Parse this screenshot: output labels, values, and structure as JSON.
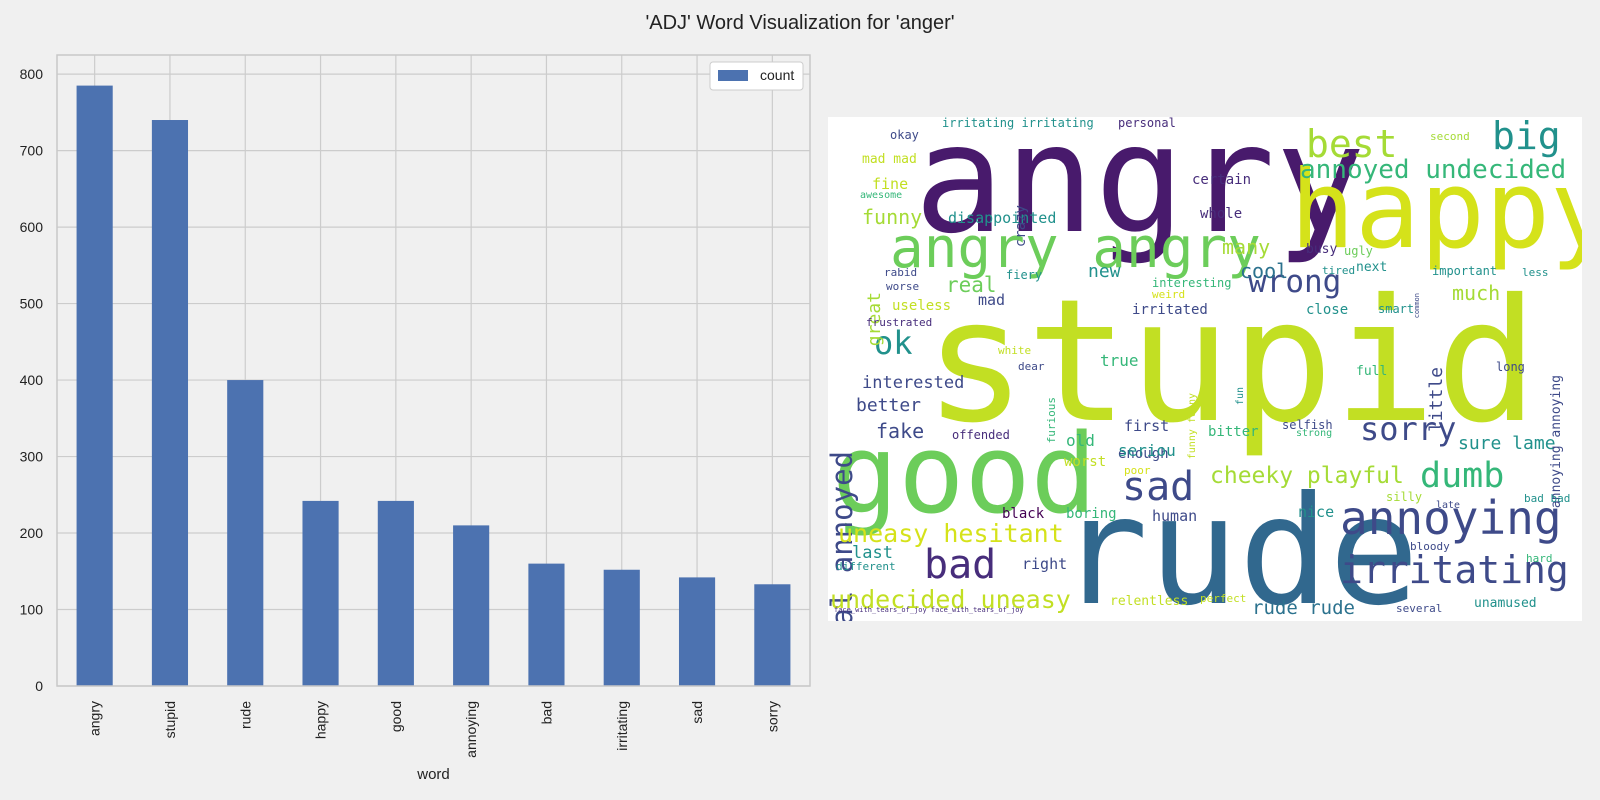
{
  "title": "'ADJ' Word Visualization for 'anger'",
  "chart_data": [
    {
      "type": "bar",
      "categories": [
        "angry",
        "stupid",
        "rude",
        "happy",
        "good",
        "annoying",
        "bad",
        "irritating",
        "sad",
        "sorry"
      ],
      "series": [
        {
          "name": "count",
          "values": [
            785,
            740,
            400,
            242,
            242,
            210,
            160,
            152,
            142,
            133
          ]
        }
      ],
      "xlabel": "word",
      "ylabel": "",
      "ylim": [
        0,
        825
      ],
      "yticks": [
        0,
        100,
        200,
        300,
        400,
        500,
        600,
        700,
        800
      ],
      "grid": true,
      "legend": "top-right",
      "bar_color": "#4c72b0",
      "grid_color": "#cccccc",
      "background": "#f0f0f0"
    },
    {
      "type": "wordcloud",
      "colormap": "viridis",
      "background": "#ffffff",
      "words": [
        {
          "text": "stupid",
          "color": "#c2df23"
        },
        {
          "text": "angry",
          "color": "#481a6c"
        },
        {
          "text": "happy",
          "color": "#d5e21a"
        },
        {
          "text": "rude",
          "color": "#31688e"
        },
        {
          "text": "good",
          "color": "#6ccd5a"
        },
        {
          "text": "angry angry",
          "color": "#6ccd5a"
        },
        {
          "text": "annoying",
          "color": "#3e4a89"
        },
        {
          "text": "irritating",
          "color": "#3e4a89"
        },
        {
          "text": "skeptical annoyed",
          "color": "#3e4a89"
        },
        {
          "text": "best",
          "color": "#a5db36"
        },
        {
          "text": "big",
          "color": "#21918c"
        },
        {
          "text": "annoyed undecided",
          "color": "#35b779"
        },
        {
          "text": "sad",
          "color": "#3e4a89"
        },
        {
          "text": "sorry",
          "color": "#3e4a89"
        },
        {
          "text": "dumb",
          "color": "#35b779"
        },
        {
          "text": "bad",
          "color": "#472d7b"
        },
        {
          "text": "ok",
          "color": "#21918c"
        },
        {
          "text": "wrong",
          "color": "#3e4a89"
        },
        {
          "text": "uneasy hesitant",
          "color": "#d5e21a"
        },
        {
          "text": "undecided uneasy",
          "color": "#c2df23"
        },
        {
          "text": "cheeky playful",
          "color": "#a5db36"
        },
        {
          "text": "rude rude",
          "color": "#2c728e"
        },
        {
          "text": "great",
          "color": "#a5db36"
        },
        {
          "text": "funny",
          "color": "#a5db36"
        },
        {
          "text": "real",
          "color": "#6ccd5a"
        },
        {
          "text": "many",
          "color": "#a5db36"
        },
        {
          "text": "cool",
          "color": "#2c728e"
        },
        {
          "text": "new",
          "color": "#21918c"
        },
        {
          "text": "much",
          "color": "#a5db36"
        },
        {
          "text": "little",
          "color": "#3e4a89"
        },
        {
          "text": "interested",
          "color": "#3e4a89"
        },
        {
          "text": "better",
          "color": "#3e4a89"
        },
        {
          "text": "fake",
          "color": "#3e4a89"
        },
        {
          "text": "sure lame",
          "color": "#21918c"
        },
        {
          "text": "last",
          "color": "#21918c"
        },
        {
          "text": "disappointed",
          "color": "#21918c"
        },
        {
          "text": "fine",
          "color": "#c2df23"
        },
        {
          "text": "mad mad",
          "color": "#c2df23"
        },
        {
          "text": "okay",
          "color": "#3e4a89"
        },
        {
          "text": "irritating irritating",
          "color": "#21918c"
        },
        {
          "text": "personal",
          "color": "#472d7b"
        },
        {
          "text": "certain",
          "color": "#472d7b"
        },
        {
          "text": "whole",
          "color": "#472d7b"
        },
        {
          "text": "crazy",
          "color": "#3e4a89"
        },
        {
          "text": "awesome",
          "color": "#35b779"
        },
        {
          "text": "second",
          "color": "#a5db36"
        },
        {
          "text": "busy",
          "color": "#472d7b"
        },
        {
          "text": "ugly",
          "color": "#6ccd5a"
        },
        {
          "text": "tired",
          "color": "#21918c"
        },
        {
          "text": "next",
          "color": "#21918c"
        },
        {
          "text": "important",
          "color": "#21918c"
        },
        {
          "text": "less",
          "color": "#21918c"
        },
        {
          "text": "annoying annoying",
          "color": "#3e4a89"
        },
        {
          "text": "common",
          "color": "#3e4a89"
        },
        {
          "text": "rabid",
          "color": "#3e4a89"
        },
        {
          "text": "worse",
          "color": "#3e4a89"
        },
        {
          "text": "fiery",
          "color": "#21918c"
        },
        {
          "text": "interesting",
          "color": "#35b779"
        },
        {
          "text": "weird",
          "color": "#d5e21a"
        },
        {
          "text": "useless",
          "color": "#c2df23"
        },
        {
          "text": "mad",
          "color": "#3e4a89"
        },
        {
          "text": "irritated",
          "color": "#3e4a89"
        },
        {
          "text": "close",
          "color": "#21918c"
        },
        {
          "text": "smart",
          "color": "#21918c"
        },
        {
          "text": "frustrated",
          "color": "#472d7b"
        },
        {
          "text": "white",
          "color": "#c2df23"
        },
        {
          "text": "dear",
          "color": "#3e4a89"
        },
        {
          "text": "furious",
          "color": "#35b779"
        },
        {
          "text": "true",
          "color": "#35b779"
        },
        {
          "text": "funny funny",
          "color": "#c2df23"
        },
        {
          "text": "fun",
          "color": "#21918c"
        },
        {
          "text": "full",
          "color": "#35b779"
        },
        {
          "text": "long",
          "color": "#3e4a89"
        },
        {
          "text": "first",
          "color": "#3e4a89"
        },
        {
          "text": "selfish",
          "color": "#3e4a89"
        },
        {
          "text": "strong",
          "color": "#35b779"
        },
        {
          "text": "offended",
          "color": "#472d7b"
        },
        {
          "text": "old",
          "color": "#35b779"
        },
        {
          "text": "bitter",
          "color": "#35b779"
        },
        {
          "text": "enough",
          "color": "#3e4a89"
        },
        {
          "text": "seriou",
          "color": "#21918c"
        },
        {
          "text": "worst",
          "color": "#c2df23"
        },
        {
          "text": "poor",
          "color": "#d5e21a"
        },
        {
          "text": "silly",
          "color": "#a5db36"
        },
        {
          "text": "late",
          "color": "#3e4a89"
        },
        {
          "text": "bad bad",
          "color": "#21918c"
        },
        {
          "text": "black",
          "color": "#440154"
        },
        {
          "text": "boring",
          "color": "#35b779"
        },
        {
          "text": "human",
          "color": "#3e4a89"
        },
        {
          "text": "nice",
          "color": "#21918c"
        },
        {
          "text": "bloody",
          "color": "#3e4a89"
        },
        {
          "text": "hard",
          "color": "#35b779"
        },
        {
          "text": "different",
          "color": "#21918c"
        },
        {
          "text": "right",
          "color": "#3e4a89"
        },
        {
          "text": "relentless",
          "color": "#c2df23"
        },
        {
          "text": "perfect",
          "color": "#c2df23"
        },
        {
          "text": "several",
          "color": "#3e4a89"
        },
        {
          "text": "unamused",
          "color": "#21918c"
        },
        {
          "text": "face_with_tears_of_joy face_with_tears_of_joy",
          "color": "#472d7b"
        }
      ]
    }
  ]
}
